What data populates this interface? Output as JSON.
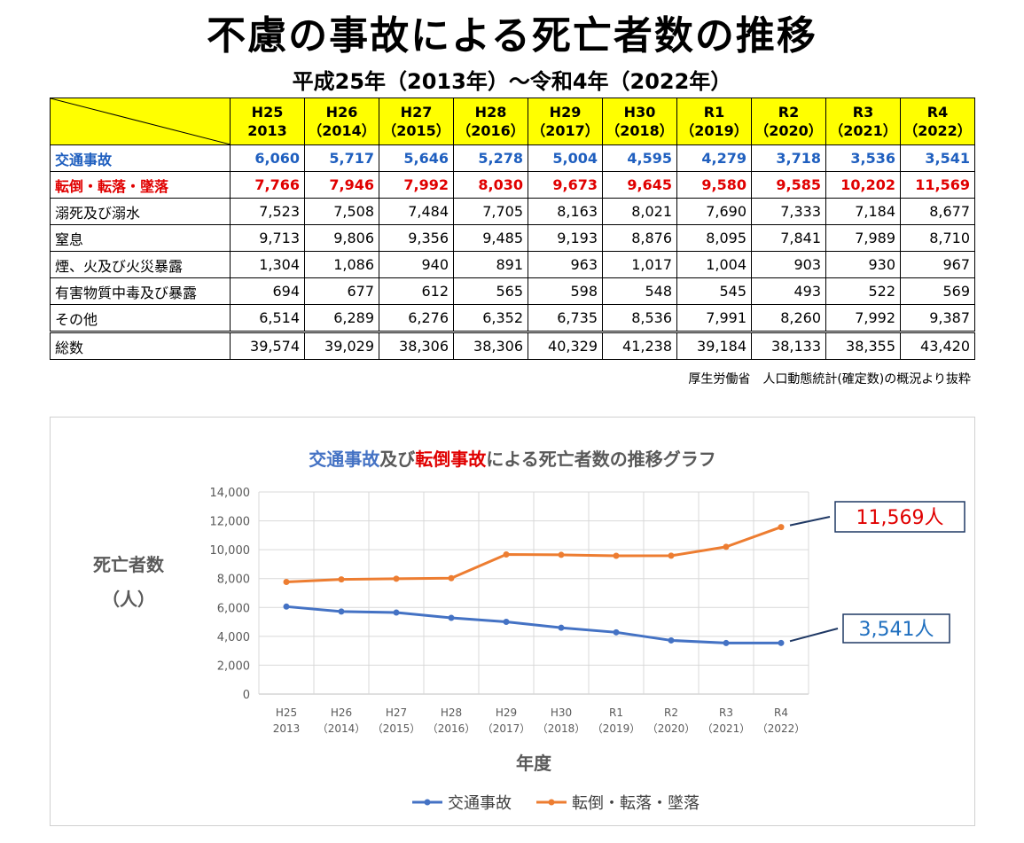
{
  "page": {
    "title": "不慮の事故による死亡者数の推移",
    "subtitle": "平成25年（2013年）～令和4年（2022年）",
    "source": "厚生労働省　人口動態統計(確定数)の概況より抜粋"
  },
  "table": {
    "headers": [
      {
        "line1": "H25",
        "line2": "2013"
      },
      {
        "line1": "H26",
        "line2": "（2014）"
      },
      {
        "line1": "H27",
        "line2": "（2015）"
      },
      {
        "line1": "H28",
        "line2": "（2016）"
      },
      {
        "line1": "H29",
        "line2": "（2017）"
      },
      {
        "line1": "H30",
        "line2": "（2018）"
      },
      {
        "line1": "R1",
        "line2": "（2019）"
      },
      {
        "line1": "R2",
        "line2": "（2020）"
      },
      {
        "line1": "R3",
        "line2": "（2021）"
      },
      {
        "line1": "R4",
        "line2": "（2022）"
      }
    ],
    "rows": [
      {
        "key": "traffic",
        "label": "交通事故",
        "values": [
          "6,060",
          "5,717",
          "5,646",
          "5,278",
          "5,004",
          "4,595",
          "4,279",
          "3,718",
          "3,536",
          "3,541"
        ]
      },
      {
        "key": "fall",
        "label": "転倒・転落・墜落",
        "values": [
          "7,766",
          "7,946",
          "7,992",
          "8,030",
          "9,673",
          "9,645",
          "9,580",
          "9,585",
          "10,202",
          "11,569"
        ]
      },
      {
        "key": "drown",
        "label": "溺死及び溺水",
        "values": [
          "7,523",
          "7,508",
          "7,484",
          "7,705",
          "8,163",
          "8,021",
          "7,690",
          "7,333",
          "7,184",
          "8,677"
        ]
      },
      {
        "key": "suffocation",
        "label": "窒息",
        "values": [
          "9,713",
          "9,806",
          "9,356",
          "9,485",
          "9,193",
          "8,876",
          "8,095",
          "7,841",
          "7,989",
          "8,710"
        ]
      },
      {
        "key": "fire",
        "label": "煙、火及び火災暴露",
        "values": [
          "1,304",
          "1,086",
          "940",
          "891",
          "963",
          "1,017",
          "1,004",
          "903",
          "930",
          "967"
        ]
      },
      {
        "key": "poison",
        "label": "有害物質中毒及び暴露",
        "values": [
          "694",
          "677",
          "612",
          "565",
          "598",
          "548",
          "545",
          "493",
          "522",
          "569"
        ]
      },
      {
        "key": "other",
        "label": "その他",
        "values": [
          "6,514",
          "6,289",
          "6,276",
          "6,352",
          "6,735",
          "8,536",
          "7,991",
          "8,260",
          "7,992",
          "9,387"
        ]
      },
      {
        "key": "total",
        "label": "総数",
        "values": [
          "39,574",
          "39,029",
          "38,306",
          "38,306",
          "40,329",
          "41,238",
          "39,184",
          "38,133",
          "38,355",
          "43,420"
        ]
      }
    ]
  },
  "chart_data": {
    "type": "line",
    "title_parts": [
      {
        "text": "交通事故",
        "color": "#4472c4"
      },
      {
        "text": "及び",
        "color": "#595959"
      },
      {
        "text": "転倒事故",
        "color": "#e00000"
      },
      {
        "text": "による死亡者数の推移グラフ",
        "color": "#595959"
      }
    ],
    "categories": [
      {
        "line1": "H25",
        "line2": "2013"
      },
      {
        "line1": "H26",
        "line2": "（2014）"
      },
      {
        "line1": "H27",
        "line2": "（2015）"
      },
      {
        "line1": "H28",
        "line2": "（2016）"
      },
      {
        "line1": "H29",
        "line2": "（2017）"
      },
      {
        "line1": "H30",
        "line2": "（2018）"
      },
      {
        "line1": "R1",
        "line2": "（2019）"
      },
      {
        "line1": "R2",
        "line2": "（2020）"
      },
      {
        "line1": "R3",
        "line2": "（2021）"
      },
      {
        "line1": "R4",
        "line2": "（2022）"
      }
    ],
    "series": [
      {
        "name": "交通事故",
        "color": "#4472c4",
        "values": [
          6060,
          5717,
          5646,
          5278,
          5004,
          4595,
          4279,
          3718,
          3536,
          3541
        ],
        "callout": "3,541人",
        "callout_color": "#1f6fbf"
      },
      {
        "name": "転倒・転落・墜落",
        "color": "#ed7d31",
        "values": [
          7766,
          7946,
          7992,
          8030,
          9673,
          9645,
          9580,
          9585,
          10202,
          11569
        ],
        "callout": "11,569人",
        "callout_color": "#e00000"
      }
    ],
    "ylabel_line1": "死亡者数",
    "ylabel_line2": "（人）",
    "xlabel": "年度",
    "ylim": [
      0,
      14000
    ],
    "yticks": [
      0,
      2000,
      4000,
      6000,
      8000,
      10000,
      12000,
      14000
    ],
    "ytick_labels": [
      "0",
      "2,000",
      "4,000",
      "6,000",
      "8,000",
      "10,000",
      "12,000",
      "14,000"
    ],
    "grid": true,
    "legend_position": "bottom"
  }
}
